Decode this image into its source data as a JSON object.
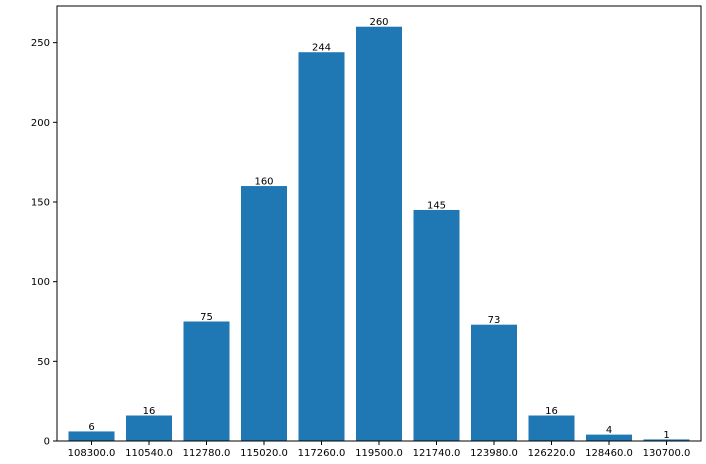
{
  "chart_data": {
    "type": "bar",
    "title": "",
    "xlabel": "",
    "ylabel": "",
    "categories": [
      "108300.0",
      "110540.0",
      "112780.0",
      "115020.0",
      "117260.0",
      "119500.0",
      "121740.0",
      "123980.0",
      "126220.0",
      "128460.0",
      "130700.0"
    ],
    "values": [
      6,
      16,
      75,
      160,
      244,
      260,
      145,
      73,
      16,
      4,
      1
    ],
    "data_labels": [
      "6",
      "16",
      "75",
      "160",
      "244",
      "260",
      "145",
      "73",
      "16",
      "4",
      "1"
    ],
    "ylim": [
      0,
      273
    ],
    "yticks": [
      0,
      50,
      100,
      150,
      200,
      250
    ],
    "ytick_labels": [
      "0",
      "50",
      "100",
      "150",
      "200",
      "250"
    ],
    "grid": false,
    "legend": "none",
    "bar_color": "#1f77b4"
  }
}
